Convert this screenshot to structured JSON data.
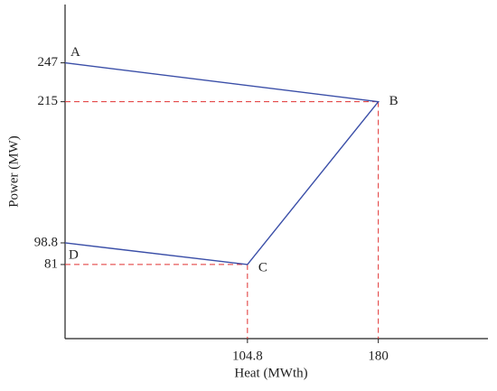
{
  "chart_data": {
    "type": "line",
    "x_label": "Heat (MWth)",
    "y_label": "Power (MW)",
    "x": [
      0,
      180,
      104.8,
      0
    ],
    "series": [
      {
        "color": "#3b4fa8",
        "values": [
          247,
          215,
          81,
          98.8
        ],
        "point_labels": [
          "A",
          "B",
          "C",
          "D"
        ]
      }
    ],
    "xlim": [
      0,
      243
    ],
    "ylim": [
      20,
      295
    ],
    "xticks": [
      104.8,
      180
    ],
    "yticks": [
      81,
      98.8,
      215,
      247
    ],
    "guide_color": "#e03030"
  }
}
